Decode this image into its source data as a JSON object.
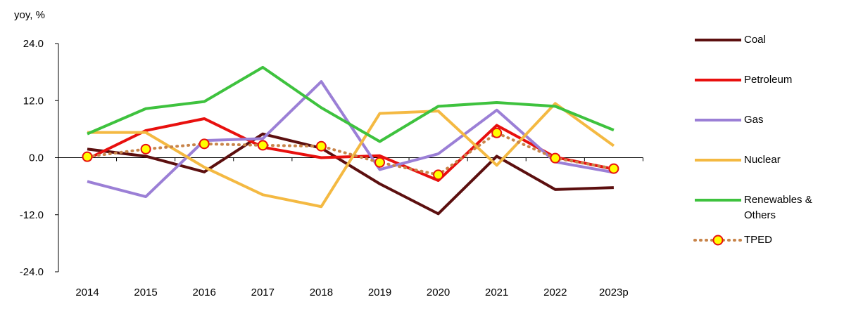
{
  "chart_data": {
    "type": "line",
    "ylabel": "yoy, %",
    "ylim": [
      -24.0,
      24.0
    ],
    "yticks": [
      "24.0",
      "12.0",
      "0.0",
      "-12.0",
      "-24.0"
    ],
    "categories": [
      "2014",
      "2015",
      "2016",
      "2017",
      "2018",
      "2019",
      "2020",
      "2021",
      "2022",
      "2023p"
    ],
    "series": [
      {
        "name": "Coal",
        "color": "#5c0f0f",
        "style": "solid",
        "values": [
          1.8,
          0.3,
          -3.0,
          5.0,
          2.0,
          -5.5,
          -11.8,
          0.3,
          -6.7,
          -6.3
        ]
      },
      {
        "name": "Petroleum",
        "color": "#e8100e",
        "style": "solid",
        "values": [
          -0.3,
          5.7,
          8.2,
          2.2,
          0.0,
          0.4,
          -4.8,
          6.8,
          0.1,
          -2.4
        ]
      },
      {
        "name": "Gas",
        "color": "#9b7fd6",
        "style": "solid",
        "values": [
          -5.0,
          -8.2,
          3.6,
          4.0,
          16.0,
          -2.5,
          0.8,
          10.0,
          -0.9,
          -3.1
        ]
      },
      {
        "name": "Nuclear",
        "color": "#f4b942",
        "style": "solid",
        "values": [
          5.3,
          5.3,
          -2.0,
          -7.8,
          -10.3,
          9.3,
          9.8,
          -1.6,
          11.4,
          2.5
        ]
      },
      {
        "name": "Renewables & Others",
        "name_lines": [
          "Renewables &",
          "Others"
        ],
        "color": "#3ec23e",
        "style": "solid",
        "values": [
          5.0,
          10.3,
          11.8,
          19.0,
          10.5,
          3.4,
          10.8,
          11.6,
          10.8,
          5.8
        ]
      },
      {
        "name": "TPED",
        "color": "#c8844a",
        "style": "dotted",
        "marker_fill": "#ffff00",
        "marker_stroke": "#e8100e",
        "values": [
          0.2,
          1.8,
          2.9,
          2.6,
          2.4,
          -1.0,
          -3.6,
          5.2,
          -0.1,
          -2.3
        ]
      }
    ]
  }
}
